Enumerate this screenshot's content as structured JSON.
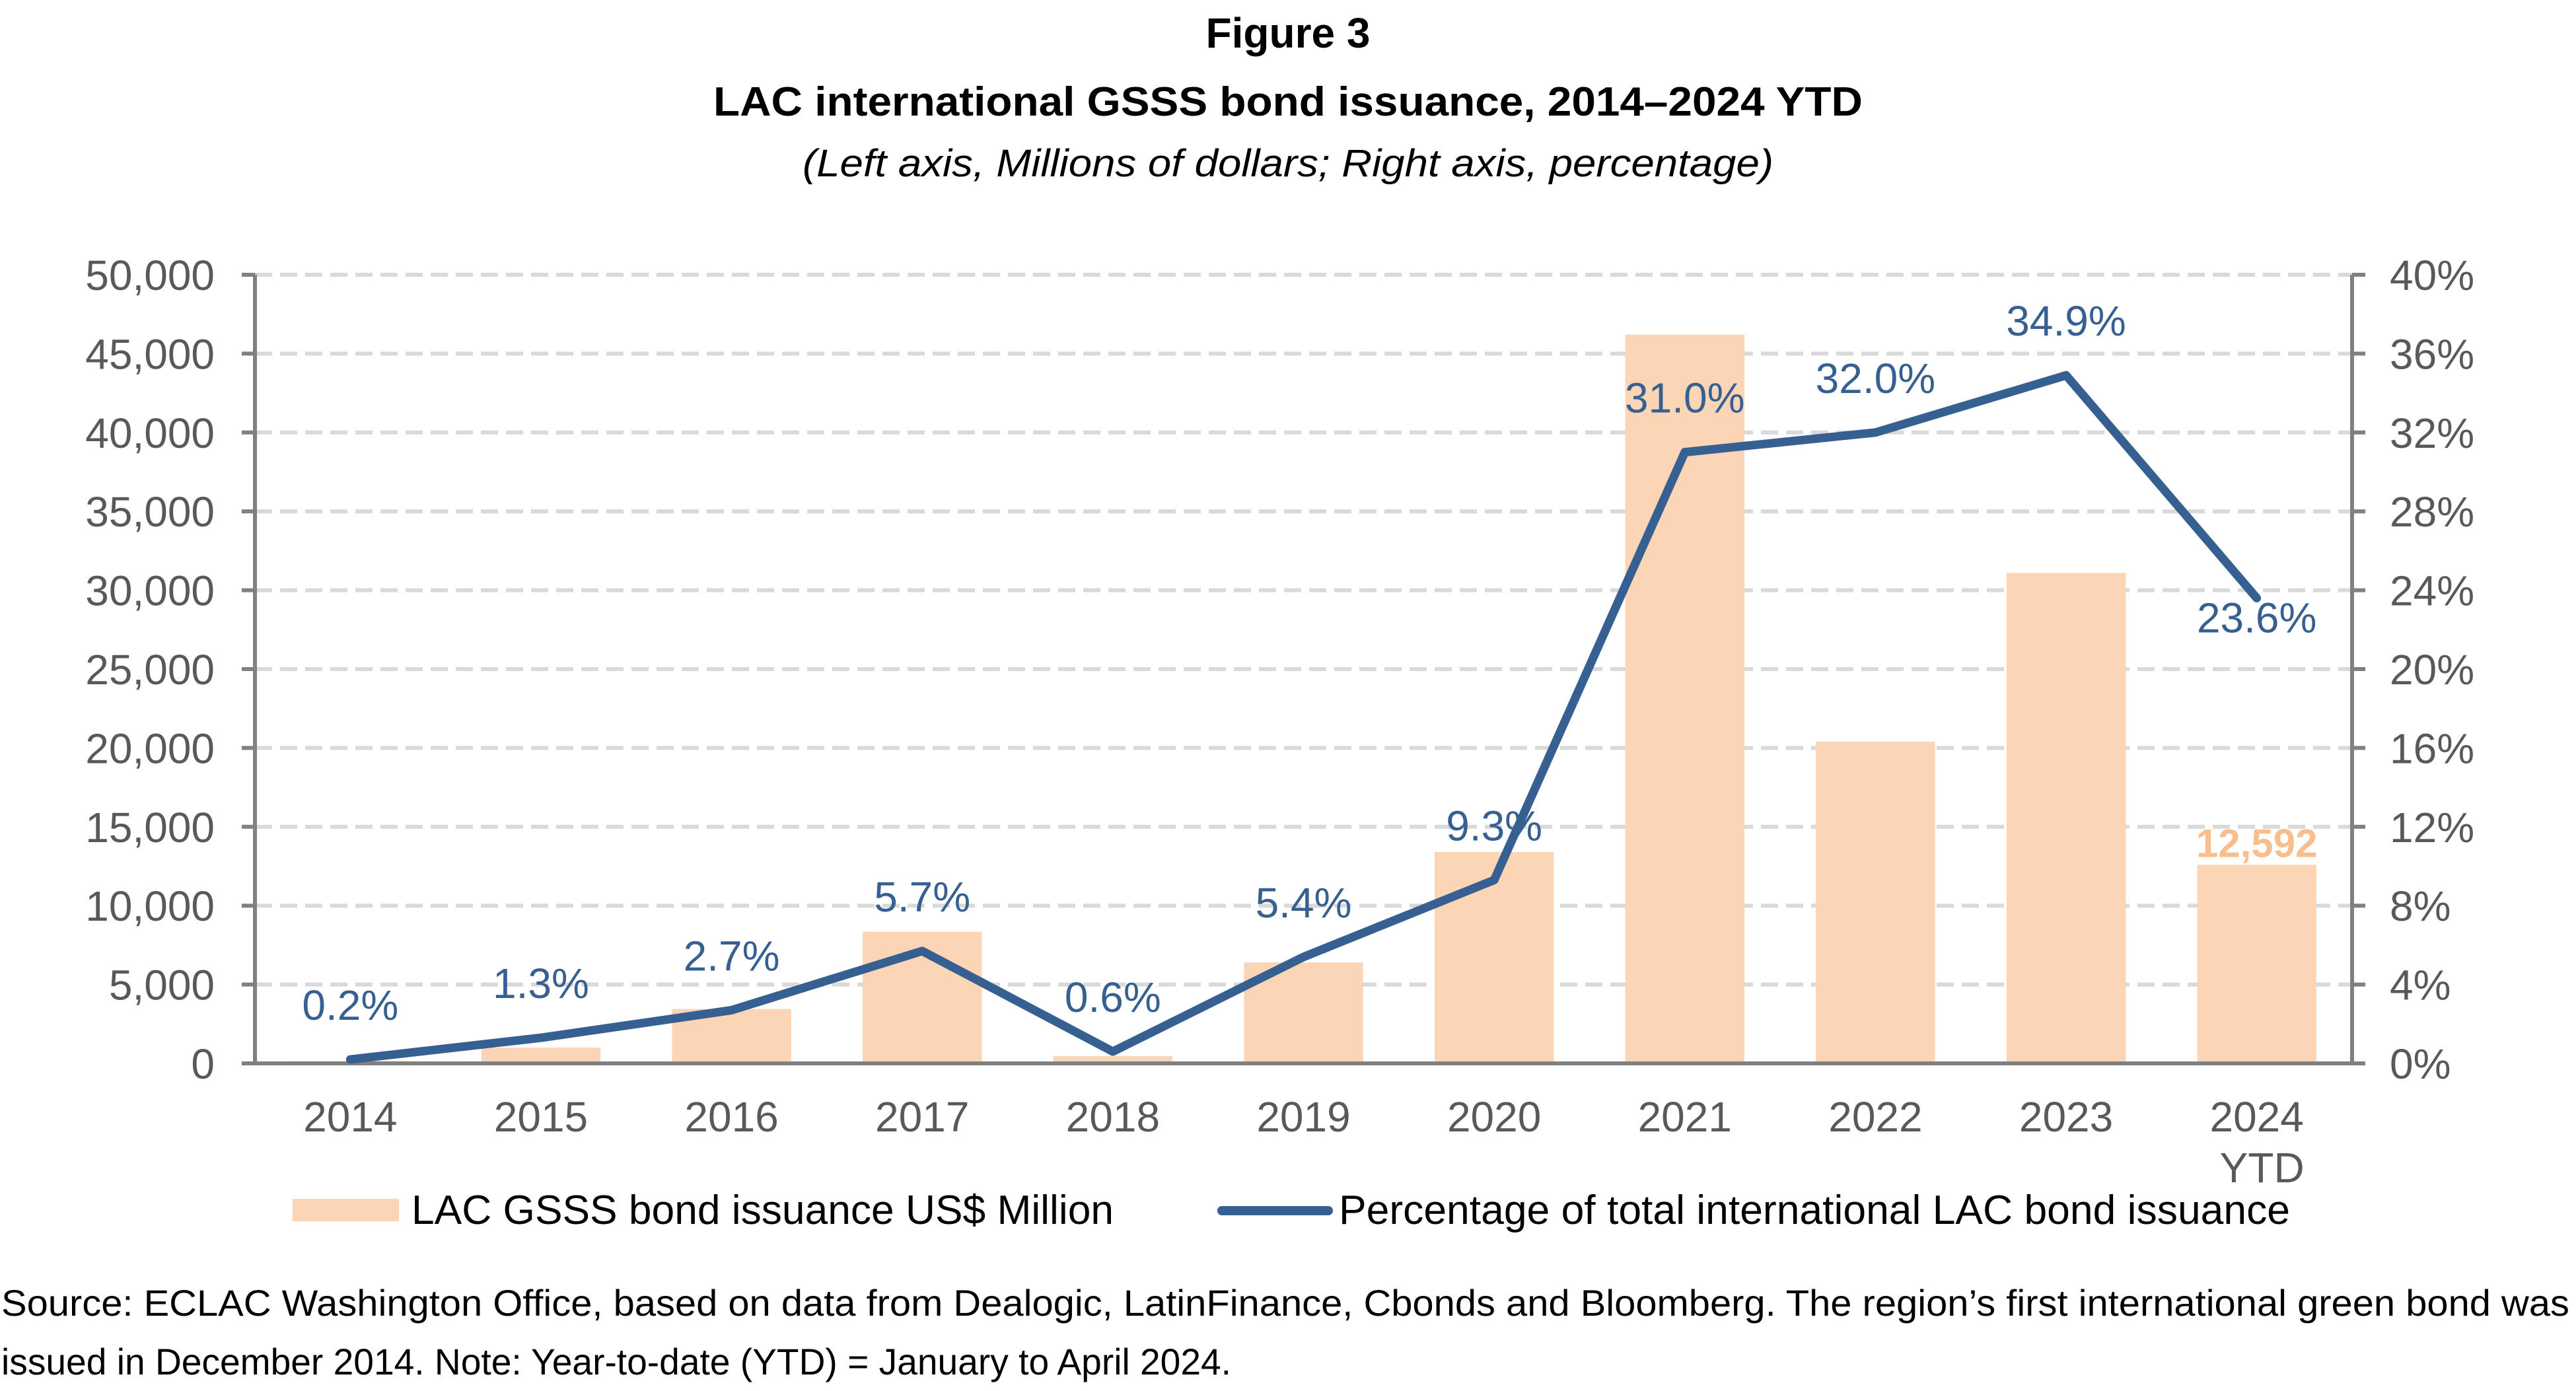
{
  "figure_label": "Figure 3",
  "chart_data": {
    "type": "bar+line",
    "title": "LAC international GSSS bond issuance, 2014–2024 YTD",
    "subtitle": "(Left axis, Millions of dollars; Right axis, percentage)",
    "categories": [
      "2014",
      "2015",
      "2016",
      "2017",
      "2018",
      "2019",
      "2020",
      "2021",
      "2022",
      "2023",
      "2024"
    ],
    "category_sublabels": [
      "",
      "",
      "",
      "",
      "",
      "",
      "",
      "",
      "",
      "",
      "YTD"
    ],
    "grid": true,
    "legend_position": "bottom",
    "left_axis": {
      "label": "Millions of dollars",
      "ylim": [
        0,
        50000
      ],
      "ticks": [
        0,
        5000,
        10000,
        15000,
        20000,
        25000,
        30000,
        35000,
        40000,
        45000,
        50000
      ],
      "tick_labels": [
        "0",
        "5,000",
        "10,000",
        "15,000",
        "20,000",
        "25,000",
        "30,000",
        "35,000",
        "40,000",
        "45,000",
        "50,000"
      ]
    },
    "right_axis": {
      "label": "percentage",
      "ylim": [
        0,
        40
      ],
      "ticks": [
        0,
        4,
        8,
        12,
        16,
        20,
        24,
        28,
        32,
        36,
        40
      ],
      "tick_labels": [
        "0%",
        "4%",
        "8%",
        "12%",
        "16%",
        "20%",
        "24%",
        "28%",
        "32%",
        "36%",
        "40%"
      ]
    },
    "series": [
      {
        "name": "LAC GSSS bond issuance US$ Million",
        "type": "bar",
        "axis": "left",
        "color": "#FBD5B5",
        "values": [
          150,
          1000,
          3450,
          8350,
          460,
          6400,
          13400,
          46200,
          20400,
          31100,
          12592
        ],
        "data_labels": [
          "",
          "",
          "",
          "",
          "",
          "",
          "",
          "",
          "",
          "",
          "12,592"
        ],
        "label_color": "#F9BE8C"
      },
      {
        "name": "Percentage of total international LAC bond issuance",
        "type": "line",
        "axis": "right",
        "color": "#376092",
        "values": [
          0.2,
          1.3,
          2.7,
          5.7,
          0.6,
          5.4,
          9.3,
          31.0,
          32.0,
          34.9,
          23.6
        ],
        "data_labels": [
          "0.2%",
          "1.3%",
          "2.7%",
          "5.7%",
          "0.6%",
          "5.4%",
          "9.3%",
          "31.0%",
          "32.0%",
          "34.9%",
          "23.6%"
        ],
        "label_placement": [
          "above",
          "above",
          "above",
          "above",
          "above",
          "above",
          "above",
          "above",
          "above",
          "above",
          "below"
        ]
      }
    ]
  },
  "footnote": {
    "line1": "Source: ECLAC Washington Office, based on data from Dealogic, LatinFinance, Cbonds and Bloomberg. The region’s first international green bond was",
    "line2": "issued in December 2014. Note: Year-to-date (YTD) = January to April 2024."
  }
}
